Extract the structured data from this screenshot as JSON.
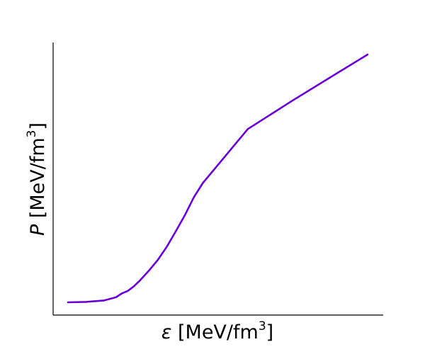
{
  "chart_data": {
    "type": "line",
    "xlabel": {
      "symbol": "ε",
      "unit": " [MeV/fm",
      "sup": "3",
      "close": "]"
    },
    "ylabel": {
      "symbol": "P",
      "unit": " [MeV/fm",
      "sup": "3",
      "close": "]"
    },
    "xlim": [
      0,
      100
    ],
    "ylim": [
      0,
      100
    ],
    "ticks_shown": false,
    "grid": false,
    "series": [
      {
        "color": "#6a00d8",
        "x": [
          0,
          6,
          12,
          16,
          18,
          20,
          22,
          24,
          27,
          30,
          33,
          36,
          39,
          42,
          45,
          60,
          75,
          90,
          100
        ],
        "y": [
          0.0,
          0.2,
          0.8,
          2.2,
          3.9,
          5.0,
          7.0,
          9.5,
          13.8,
          18.5,
          24.3,
          31.0,
          38.0,
          45.8,
          52.0,
          75.5,
          88.0,
          100.0,
          108.0
        ]
      }
    ]
  }
}
